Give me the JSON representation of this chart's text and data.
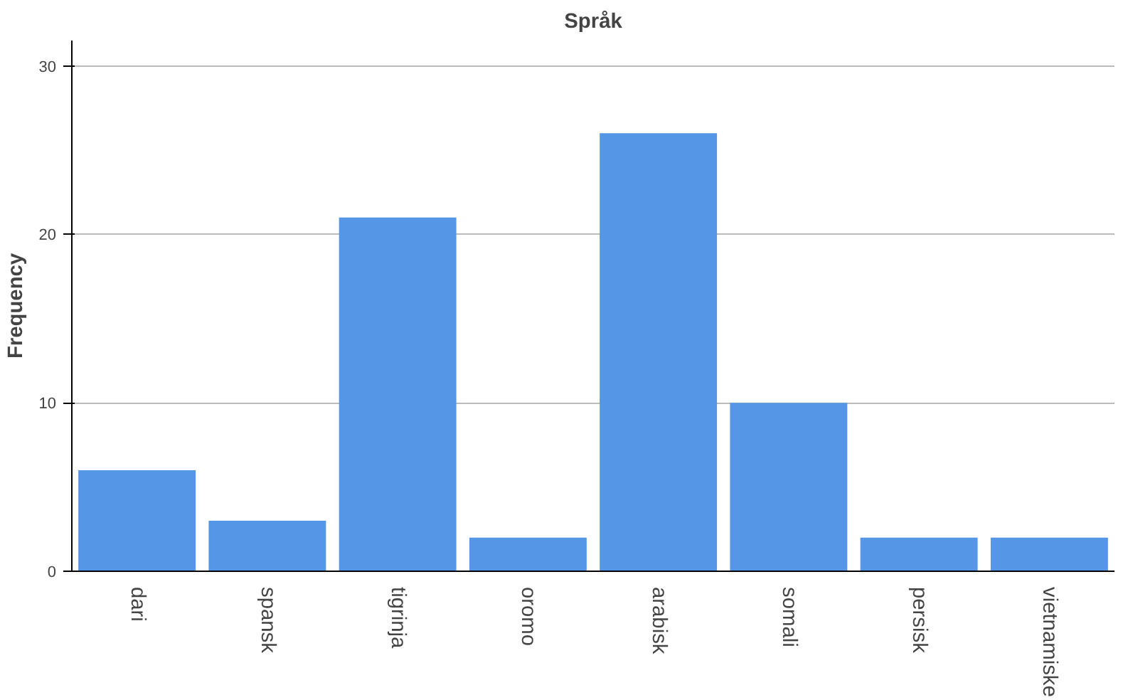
{
  "chart_data": {
    "type": "bar",
    "title": "Språk",
    "ylabel": "Frequency",
    "categories": [
      "dari",
      "spansk",
      "tigrinja",
      "oromo",
      "arabisk",
      "somali",
      "persisk",
      "vietnamiske"
    ],
    "values": [
      6,
      3,
      21,
      2,
      26,
      10,
      2,
      2
    ],
    "color": "#5596e6",
    "ylim": [
      0,
      31.5
    ],
    "yticks": [
      0,
      10,
      20,
      30
    ],
    "grid": "y"
  }
}
